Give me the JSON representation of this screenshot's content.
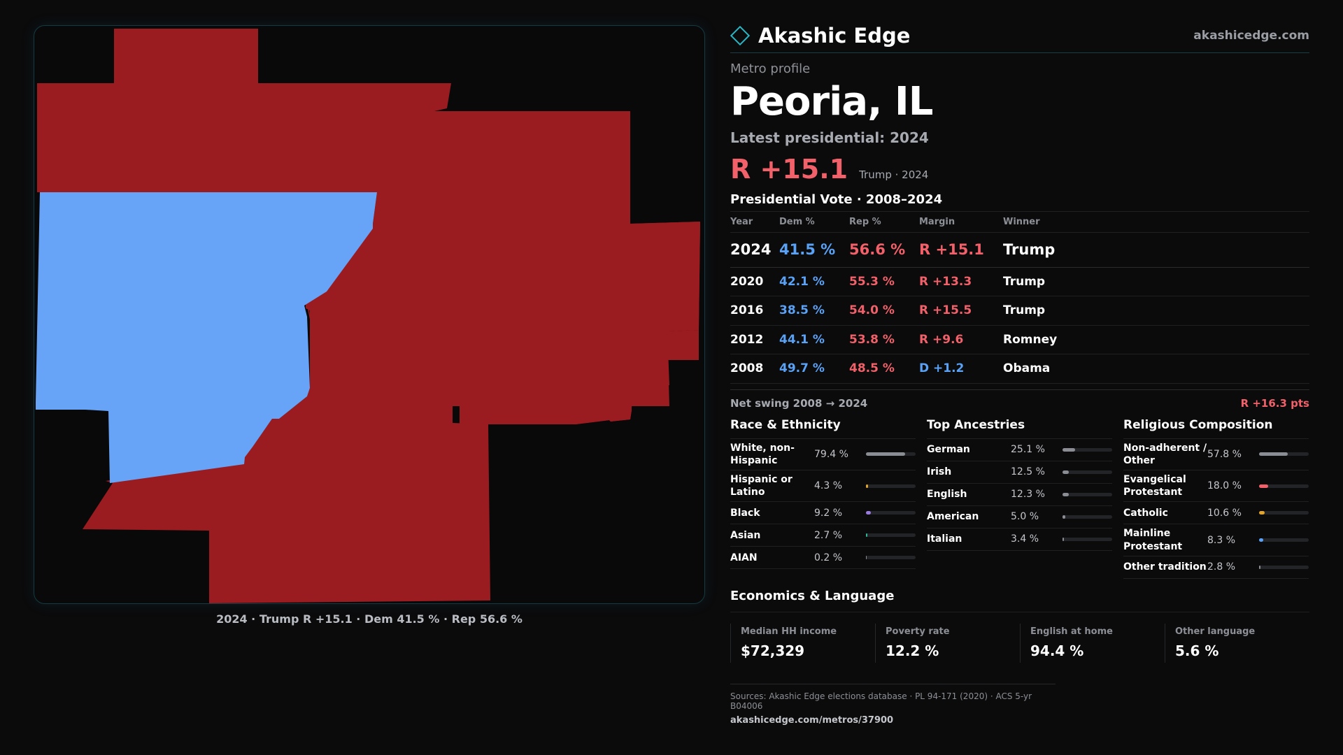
{
  "map": {
    "caption": "2024 · Trump R +15.1 · Dem 41.5 % · Rep 56.6 %",
    "colors": {
      "republican": "#9a1c20",
      "democrat": "#67a3f7",
      "background": "#090909"
    },
    "counties": [
      {
        "id": "north-west",
        "party": "R"
      },
      {
        "id": "north-east",
        "party": "R"
      },
      {
        "id": "central-east",
        "party": "R"
      },
      {
        "id": "south-east",
        "party": "R"
      },
      {
        "id": "south",
        "party": "R"
      },
      {
        "id": "west",
        "party": "D"
      }
    ]
  },
  "brand": {
    "name": "Akashic Edge",
    "url": "akashicedge.com",
    "logo_icon": "diamond-icon",
    "accent": "#2ab6c4"
  },
  "profile": {
    "eyebrow": "Metro profile",
    "title": "Peoria, IL",
    "latest_label": "Latest presidential: 2024",
    "headline_margin": "R +15.1",
    "headline_sub": "Trump · 2024"
  },
  "vote": {
    "title": "Presidential Vote · 2008–2024",
    "headers": {
      "year": "Year",
      "dem": "Dem %",
      "rep": "Rep %",
      "margin": "Margin",
      "winner": "Winner"
    },
    "rows": [
      {
        "year": "2024",
        "dem": "41.5 %",
        "rep": "56.6 %",
        "margin": "R +15.1",
        "winner": "Trump"
      },
      {
        "year": "2020",
        "dem": "42.1 %",
        "rep": "55.3 %",
        "margin": "R +13.3",
        "winner": "Trump"
      },
      {
        "year": "2016",
        "dem": "38.5 %",
        "rep": "54.0 %",
        "margin": "R +15.5",
        "winner": "Trump"
      },
      {
        "year": "2012",
        "dem": "44.1 %",
        "rep": "53.8 %",
        "margin": "R +9.6",
        "winner": "Romney"
      },
      {
        "year": "2008",
        "dem": "49.7 %",
        "rep": "48.5 %",
        "margin": "D +1.2",
        "winner": "Obama"
      }
    ],
    "swing_label": "Net swing 2008 → 2024",
    "swing_value": "R +16.3 pts"
  },
  "race": {
    "title": "Race & Ethnicity",
    "items": [
      {
        "label": "White, non-Hispanic",
        "value": "79.4 %",
        "pct": 79.4,
        "color": "#8a8d94"
      },
      {
        "label": "Hispanic or Latino",
        "value": "4.3 %",
        "pct": 4.3,
        "color": "#e0a52a"
      },
      {
        "label": "Black",
        "value": "9.2 %",
        "pct": 9.2,
        "color": "#9a7be0"
      },
      {
        "label": "Asian",
        "value": "2.7 %",
        "pct": 2.7,
        "color": "#2fb89a"
      },
      {
        "label": "AIAN",
        "value": "0.2 %",
        "pct": 0.2,
        "color": "#8a8d94"
      }
    ]
  },
  "ancestry": {
    "title": "Top Ancestries",
    "items": [
      {
        "label": "German",
        "value": "25.1 %",
        "pct": 25.1,
        "color": "#8a8d94"
      },
      {
        "label": "Irish",
        "value": "12.5 %",
        "pct": 12.5,
        "color": "#8a8d94"
      },
      {
        "label": "English",
        "value": "12.3 %",
        "pct": 12.3,
        "color": "#8a8d94"
      },
      {
        "label": "American",
        "value": "5.0 %",
        "pct": 5.0,
        "color": "#8a8d94"
      },
      {
        "label": "Italian",
        "value": "3.4 %",
        "pct": 3.4,
        "color": "#8a8d94"
      }
    ]
  },
  "religion": {
    "title": "Religious Composition",
    "items": [
      {
        "label": "Non-adherent / Other",
        "value": "57.8 %",
        "pct": 57.8,
        "color": "#8a8d94"
      },
      {
        "label": "Evangelical Protestant",
        "value": "18.0 %",
        "pct": 18.0,
        "color": "#f2606a"
      },
      {
        "label": "Catholic",
        "value": "10.6 %",
        "pct": 10.6,
        "color": "#e0a52a"
      },
      {
        "label": "Mainline Protestant",
        "value": "8.3 %",
        "pct": 8.3,
        "color": "#5aa2f6"
      },
      {
        "label": "Other tradition",
        "value": "2.8 %",
        "pct": 2.8,
        "color": "#8a8d94"
      }
    ]
  },
  "econ": {
    "title": "Economics & Language",
    "items": [
      {
        "label": "Median HH income",
        "value": "$72,329"
      },
      {
        "label": "Poverty rate",
        "value": "12.2 %"
      },
      {
        "label": "English at home",
        "value": "94.4 %"
      },
      {
        "label": "Other language",
        "value": "5.6 %"
      }
    ]
  },
  "footer": {
    "sources": "Sources: Akashic Edge elections database · PL 94-171 (2020) · ACS 5-yr B04006",
    "url": "akashicedge.com/metros/37900"
  }
}
